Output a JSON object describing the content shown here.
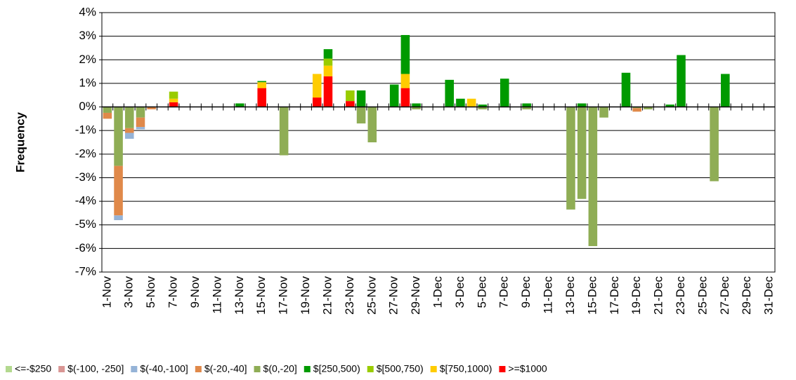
{
  "chart_data": {
    "type": "stacked_bar",
    "y_label": "Frequency",
    "categories": [
      "1-Nov",
      null,
      "3-Nov",
      null,
      "5-Nov",
      null,
      "7-Nov",
      null,
      "9-Nov",
      null,
      "11-Nov",
      null,
      "13-Nov",
      null,
      "15-Nov",
      null,
      "17-Nov",
      null,
      "19-Nov",
      null,
      "21-Nov",
      null,
      "23-Nov",
      null,
      "25-Nov",
      null,
      "27-Nov",
      null,
      "29-Nov",
      null,
      "1-Dec",
      null,
      "3-Dec",
      null,
      "5-Dec",
      null,
      "7-Dec",
      null,
      "9-Dec",
      null,
      "11-Dec",
      null,
      "13-Dec",
      null,
      "15-Dec",
      null,
      "17-Dec",
      null,
      "19-Dec",
      null,
      "21-Dec",
      null,
      "23-Dec",
      null,
      "25-Dec",
      null,
      "27-Dec",
      null,
      "29-Dec",
      null,
      "31-Dec"
    ],
    "ylim": [
      -7,
      4
    ],
    "yticks": [
      {
        "value": -7,
        "label": "-7%"
      },
      {
        "value": -6,
        "label": "-6%"
      },
      {
        "value": -5,
        "label": "-5%"
      },
      {
        "value": -4,
        "label": "-4%"
      },
      {
        "value": -3,
        "label": "-3%"
      },
      {
        "value": -2,
        "label": "-2%"
      },
      {
        "value": -1,
        "label": "-1%"
      },
      {
        "value": 0,
        "label": "0%"
      },
      {
        "value": 1,
        "label": "1%"
      },
      {
        "value": 2,
        "label": "2%"
      },
      {
        "value": 3,
        "label": "3%"
      },
      {
        "value": 4,
        "label": "4%"
      }
    ],
    "grid": true,
    "legend": "bottom",
    "series": [
      {
        "name": "<=-$250",
        "color": "#b3d98f",
        "values": [
          0,
          0,
          0,
          0,
          0,
          0,
          0,
          0,
          0,
          0,
          0,
          0,
          0,
          0,
          0,
          0,
          0,
          0,
          0,
          0,
          0,
          0,
          0,
          0,
          0,
          0,
          0,
          0,
          0,
          0,
          0,
          0,
          0,
          0,
          0,
          0,
          0,
          0,
          0,
          0,
          0,
          0,
          0,
          0,
          0,
          0,
          0,
          0,
          0,
          0,
          0,
          0,
          0,
          0,
          0,
          0,
          0,
          0,
          0,
          0,
          0
        ]
      },
      {
        "name": "$(-100, -250]",
        "color": "#d99694",
        "values": [
          0,
          0,
          0,
          0,
          0,
          0,
          0,
          0,
          0,
          0,
          0,
          0,
          0,
          0,
          0,
          0,
          0,
          0,
          0,
          0,
          0,
          0,
          0,
          0,
          0,
          0,
          0,
          0,
          0,
          0,
          0,
          0,
          0,
          0,
          0,
          0,
          0,
          0,
          0,
          0,
          0,
          0,
          0,
          0,
          0,
          0,
          0,
          0,
          0,
          0,
          0,
          0,
          0,
          0,
          0,
          0,
          0,
          0,
          0,
          0,
          0
        ]
      },
      {
        "name": "$(-40,-100]",
        "color": "#95b3d7",
        "values": [
          0,
          -0.2,
          -0.25,
          -0.1,
          0,
          0,
          0,
          0,
          0,
          0,
          0,
          0,
          0,
          0,
          0,
          0,
          0,
          0,
          0,
          0,
          0,
          0,
          0,
          0,
          0,
          0,
          0,
          0,
          0,
          0,
          0,
          0,
          0,
          0,
          0,
          0,
          0,
          0,
          0,
          0,
          0,
          0,
          0,
          0,
          0,
          0,
          0,
          0,
          0,
          0,
          0,
          0,
          0,
          0,
          0,
          0,
          0,
          0,
          0,
          0,
          0
        ]
      },
      {
        "name": "$(-20,-40]",
        "color": "#e0894a",
        "values": [
          -0.25,
          -2.1,
          -0.2,
          -0.4,
          -0.1,
          0,
          0,
          0,
          0,
          0,
          0,
          0,
          0,
          0,
          0,
          0,
          0,
          0,
          0,
          0,
          0,
          0,
          0,
          0,
          0,
          0,
          0,
          0,
          0,
          0,
          0,
          0,
          0,
          0,
          0,
          0,
          0,
          0,
          0,
          0,
          0,
          0,
          0,
          0,
          0,
          0,
          0,
          0,
          -0.15,
          0,
          0,
          0,
          0,
          0,
          0,
          0,
          0,
          0,
          0,
          0,
          0
        ]
      },
      {
        "name": "$(0,-20]",
        "color": "#8fad55",
        "values": [
          -0.25,
          -2.5,
          -0.9,
          -0.45,
          0,
          0,
          0,
          0,
          0,
          0,
          0,
          0,
          0,
          0,
          0,
          0,
          -2.05,
          0,
          0,
          0,
          0,
          0,
          0,
          -0.7,
          -1.5,
          0,
          0,
          0,
          -0.1,
          0,
          0,
          0,
          0,
          0,
          -0.1,
          0,
          0,
          0,
          -0.1,
          0,
          0,
          0,
          -4.35,
          -3.9,
          -5.9,
          -0.45,
          0,
          0,
          -0.05,
          -0.1,
          0,
          0,
          0,
          0,
          0,
          -3.15,
          0,
          0,
          0,
          0,
          0
        ]
      },
      {
        "name": "$[250,500)",
        "color": "#009a00",
        "values": [
          0,
          0,
          0,
          0,
          0,
          0,
          0,
          0,
          0,
          0,
          0,
          0,
          0.15,
          0,
          0.05,
          0,
          0,
          0,
          0,
          0,
          0.4,
          0,
          0,
          0.7,
          0,
          0,
          0.95,
          1.65,
          0.15,
          0,
          0,
          1.15,
          0.35,
          0,
          0.1,
          0,
          1.2,
          0,
          0.15,
          0,
          0,
          0,
          0,
          0.15,
          0,
          0,
          0,
          1.45,
          0,
          0,
          0,
          0.1,
          2.2,
          0,
          0,
          0,
          1.4,
          0,
          0,
          0,
          0
        ]
      },
      {
        "name": "$[500,750)",
        "color": "#99cc00",
        "values": [
          0,
          0,
          0,
          0,
          0,
          0,
          0.3,
          0,
          0,
          0,
          0,
          0,
          0,
          0,
          0,
          0,
          0,
          0,
          0,
          0,
          0.3,
          0,
          0.45,
          0,
          0,
          0,
          0,
          0,
          0,
          0,
          0,
          0,
          0,
          0,
          0,
          0,
          0,
          0,
          0,
          0,
          0,
          0,
          0,
          0,
          0,
          0,
          0,
          0,
          0,
          0,
          0,
          0,
          0,
          0,
          0,
          0,
          0,
          0,
          0,
          0,
          0
        ]
      },
      {
        "name": "$[750,1000)",
        "color": "#ffcc00",
        "values": [
          0,
          0,
          0,
          0,
          0,
          0,
          0.15,
          0,
          0,
          0,
          0,
          0,
          0,
          0,
          0.25,
          0,
          0,
          0,
          0,
          1.0,
          0.45,
          0,
          0,
          0,
          0,
          0,
          0,
          0.6,
          0,
          0,
          0,
          0,
          0,
          0.35,
          0,
          0,
          0,
          0,
          0,
          0,
          0,
          0,
          0,
          0,
          0,
          0,
          0,
          0,
          0,
          0,
          0,
          0,
          0,
          0,
          0,
          0,
          0,
          0,
          0,
          0,
          0
        ]
      },
      {
        "name": ">=$1000",
        "color": "#ff0000",
        "values": [
          0,
          0,
          0,
          0,
          0,
          0,
          0.2,
          0,
          0,
          0,
          0,
          0,
          0,
          0,
          0.8,
          0,
          0,
          0,
          0,
          0.4,
          1.3,
          0,
          0.25,
          0,
          0,
          0,
          0,
          0.8,
          0,
          0,
          0,
          0,
          0,
          0,
          0,
          0,
          0,
          0,
          0,
          0,
          0,
          0,
          0,
          0,
          0,
          0,
          0,
          0,
          0,
          0,
          0,
          0,
          0,
          0,
          0,
          0,
          0,
          0,
          0,
          0,
          0
        ]
      }
    ]
  }
}
